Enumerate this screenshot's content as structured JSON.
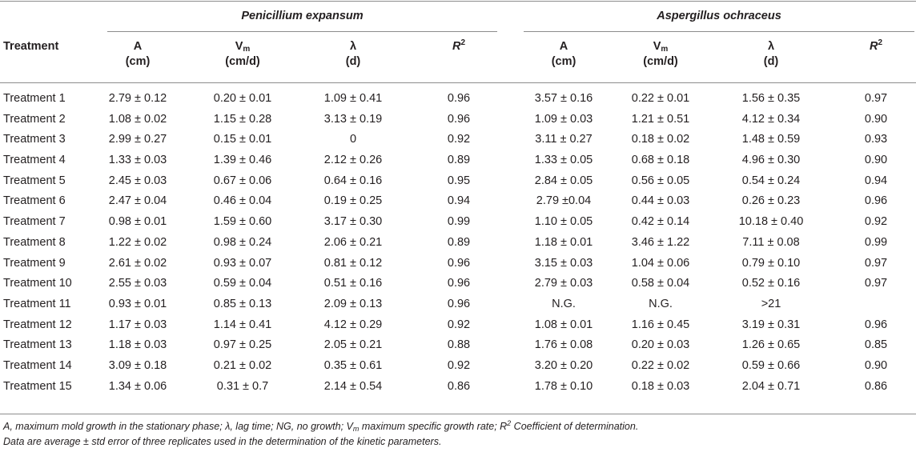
{
  "table": {
    "treatment_header": "Treatment",
    "groups": [
      {
        "name": "Penicillium expansum"
      },
      {
        "name": "Aspergillus ochraceus"
      }
    ],
    "columns": [
      {
        "sym": "A",
        "unit": "(cm)"
      },
      {
        "sym": "V",
        "sub": "m",
        "unit": "(cm/d)"
      },
      {
        "sym": "λ",
        "unit": "(d)"
      },
      {
        "sym": "R",
        "sup": "2"
      },
      {
        "sym": "A",
        "unit": "(cm)"
      },
      {
        "sym": "V",
        "sub": "m",
        "unit": "(cm/d)"
      },
      {
        "sym": "λ",
        "unit": "(d)"
      },
      {
        "sym": "R",
        "sup": "2"
      }
    ],
    "rows": [
      [
        "Treatment 1",
        "2.79 ± 0.12",
        "0.20 ± 0.01",
        "1.09 ± 0.41",
        "0.96",
        "3.57 ± 0.16",
        "0.22 ± 0.01",
        "1.56 ± 0.35",
        "0.97"
      ],
      [
        "Treatment 2",
        "1.08 ± 0.02",
        "1.15 ± 0.28",
        "3.13 ± 0.19",
        "0.96",
        "1.09 ± 0.03",
        "1.21 ± 0.51",
        "4.12 ± 0.34",
        "0.90"
      ],
      [
        "Treatment 3",
        "2.99 ± 0.27",
        "0.15 ± 0.01",
        "0",
        "0.92",
        "3.11 ± 0.27",
        "0.18 ± 0.02",
        "1.48 ± 0.59",
        "0.93"
      ],
      [
        "Treatment 4",
        "1.33 ± 0.03",
        "1.39 ± 0.46",
        "2.12 ± 0.26",
        "0.89",
        "1.33 ± 0.05",
        "0.68 ± 0.18",
        "4.96 ± 0.30",
        "0.90"
      ],
      [
        "Treatment 5",
        "2.45 ± 0.03",
        "0.67 ± 0.06",
        "0.64 ± 0.16",
        "0.95",
        "2.84 ± 0.05",
        "0.56 ± 0.05",
        "0.54 ± 0.24",
        "0.94"
      ],
      [
        "Treatment 6",
        "2.47 ± 0.04",
        "0.46 ± 0.04",
        "0.19 ± 0.25",
        "0.94",
        "2.79 ±0.04",
        "0.44 ± 0.03",
        "0.26 ± 0.23",
        "0.96"
      ],
      [
        "Treatment 7",
        "0.98 ± 0.01",
        "1.59 ± 0.60",
        "3.17 ± 0.30",
        "0.99",
        "1.10 ± 0.05",
        "0.42 ± 0.14",
        "10.18 ± 0.40",
        "0.92"
      ],
      [
        "Treatment 8",
        "1.22 ± 0.02",
        "0.98 ± 0.24",
        "2.06 ± 0.21",
        "0.89",
        "1.18 ± 0.01",
        "3.46 ± 1.22",
        "7.11 ± 0.08",
        "0.99"
      ],
      [
        "Treatment 9",
        "2.61 ± 0.02",
        "0.93 ± 0.07",
        "0.81 ± 0.12",
        "0.96",
        "3.15 ± 0.03",
        "1.04 ± 0.06",
        "0.79 ± 0.10",
        "0.97"
      ],
      [
        "Treatment 10",
        "2.55 ± 0.03",
        "0.59 ± 0.04",
        "0.51 ± 0.16",
        "0.96",
        "2.79 ± 0.03",
        "0.58 ± 0.04",
        "0.52 ± 0.16",
        "0.97"
      ],
      [
        "Treatment 11",
        "0.93 ± 0.01",
        "0.85 ± 0.13",
        "2.09 ± 0.13",
        "0.96",
        "N.G.",
        "N.G.",
        ">21",
        ""
      ],
      [
        "Treatment 12",
        "1.17 ± 0.03",
        "1.14 ± 0.41",
        "4.12 ± 0.29",
        "0.92",
        "1.08 ± 0.01",
        "1.16 ± 0.45",
        "3.19 ± 0.31",
        "0.96"
      ],
      [
        "Treatment 13",
        "1.18 ± 0.03",
        "0.97 ± 0.25",
        "2.05 ± 0.21",
        "0.88",
        "1.76 ± 0.08",
        "0.20 ± 0.03",
        "1.26 ± 0.65",
        "0.85"
      ],
      [
        "Treatment 14",
        "3.09 ± 0.18",
        "0.21 ± 0.02",
        "0.35 ± 0.61",
        "0.92",
        "3.20 ± 0.20",
        "0.22 ± 0.02",
        "0.59 ± 0.66",
        "0.90"
      ],
      [
        "Treatment 15",
        "1.34 ± 0.06",
        "0.31 ± 0.7",
        "2.14 ± 0.54",
        "0.86",
        "1.78 ± 0.10",
        "0.18 ± 0.03",
        "2.04 ± 0.71",
        "0.86"
      ]
    ]
  },
  "footnotes": {
    "line1": [
      {
        "t": "A, maximum mold growth in the stationary phase; λ, lag time; NG, no growth; V"
      },
      {
        "sub": "m"
      },
      {
        "t": " maximum specific growth rate; R"
      },
      {
        "sup": "2"
      },
      {
        "t": " Coefficient of determination."
      }
    ],
    "line2": "Data are average ± std error of three replicates used in the determination of the kinetic parameters."
  }
}
